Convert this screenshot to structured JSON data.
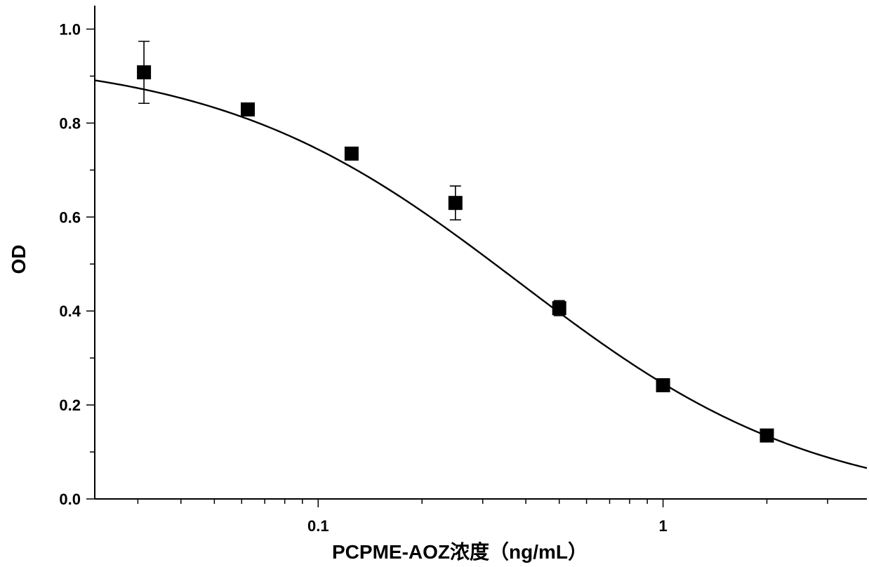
{
  "chart_data": {
    "type": "scatter",
    "title": "",
    "xlabel": "PCPME-AOZ浓度（ng/mL）",
    "ylabel": "OD",
    "x_scale": "log",
    "xlim": [
      0.0225,
      3.9
    ],
    "ylim": [
      0.0,
      1.05
    ],
    "x_tick_labels": [
      {
        "value": 0.1,
        "label": "0.1"
      },
      {
        "value": 1,
        "label": "1"
      }
    ],
    "y_tick_labels": [
      {
        "value": 0.0,
        "label": "0.0"
      },
      {
        "value": 0.2,
        "label": "0.2"
      },
      {
        "value": 0.4,
        "label": "0.4"
      },
      {
        "value": 0.6,
        "label": "0.6"
      },
      {
        "value": 0.8,
        "label": "0.8"
      },
      {
        "value": 1.0,
        "label": "1.0"
      }
    ],
    "grid": false,
    "legend": "none",
    "series": [
      {
        "marker": "square",
        "x": [
          0.03125,
          0.0625,
          0.125,
          0.25,
          0.5,
          1.0,
          2.0
        ],
        "y": [
          0.908,
          0.829,
          0.735,
          0.63,
          0.406,
          0.242,
          0.135
        ],
        "error": [
          0.066,
          0.004,
          0.004,
          0.036,
          0.016,
          0.004,
          0.004
        ]
      }
    ],
    "fit_curve": {
      "type": "four-parameter logistic",
      "top": 0.945,
      "bottom": -0.02,
      "ic50": 0.38,
      "hill": 1.0
    }
  }
}
